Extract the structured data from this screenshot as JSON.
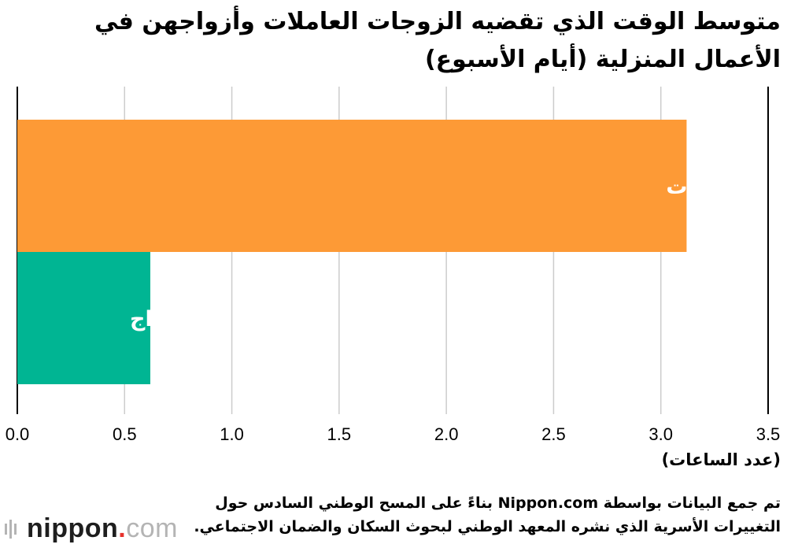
{
  "title": "متوسط الوقت الذي تقضيه الزوجات العاملات وأزواجهن في الأعمال المنزلية (أيام الأسبوع)",
  "unit_label": "(عدد الساعات)",
  "source_note": "تم جمع البيانات بواسطة Nippon.com بناءً على المسح الوطني السادس حول التغييرات الأسرية الذي نشره المعهد الوطني لبحوث السكان والضمان الاجتماعي.",
  "logo": {
    "name": "nippon",
    "dot": ".",
    "suffix": "com"
  },
  "colors": {
    "wives": "#fd9a36",
    "husbands": "#00b593",
    "grid": "#cccccc",
    "axis": "#000000"
  },
  "chart_data": {
    "type": "bar",
    "orientation": "horizontal",
    "categories": [
      "الزوجات",
      "الأزواج"
    ],
    "values": [
      3.12,
      0.62
    ],
    "xlim": [
      0,
      3.5
    ],
    "xticks": [
      "0.0",
      "0.5",
      "1.0",
      "1.5",
      "2.0",
      "2.5",
      "3.0",
      "3.5"
    ],
    "grid": true,
    "labels_inside_bars": true
  }
}
